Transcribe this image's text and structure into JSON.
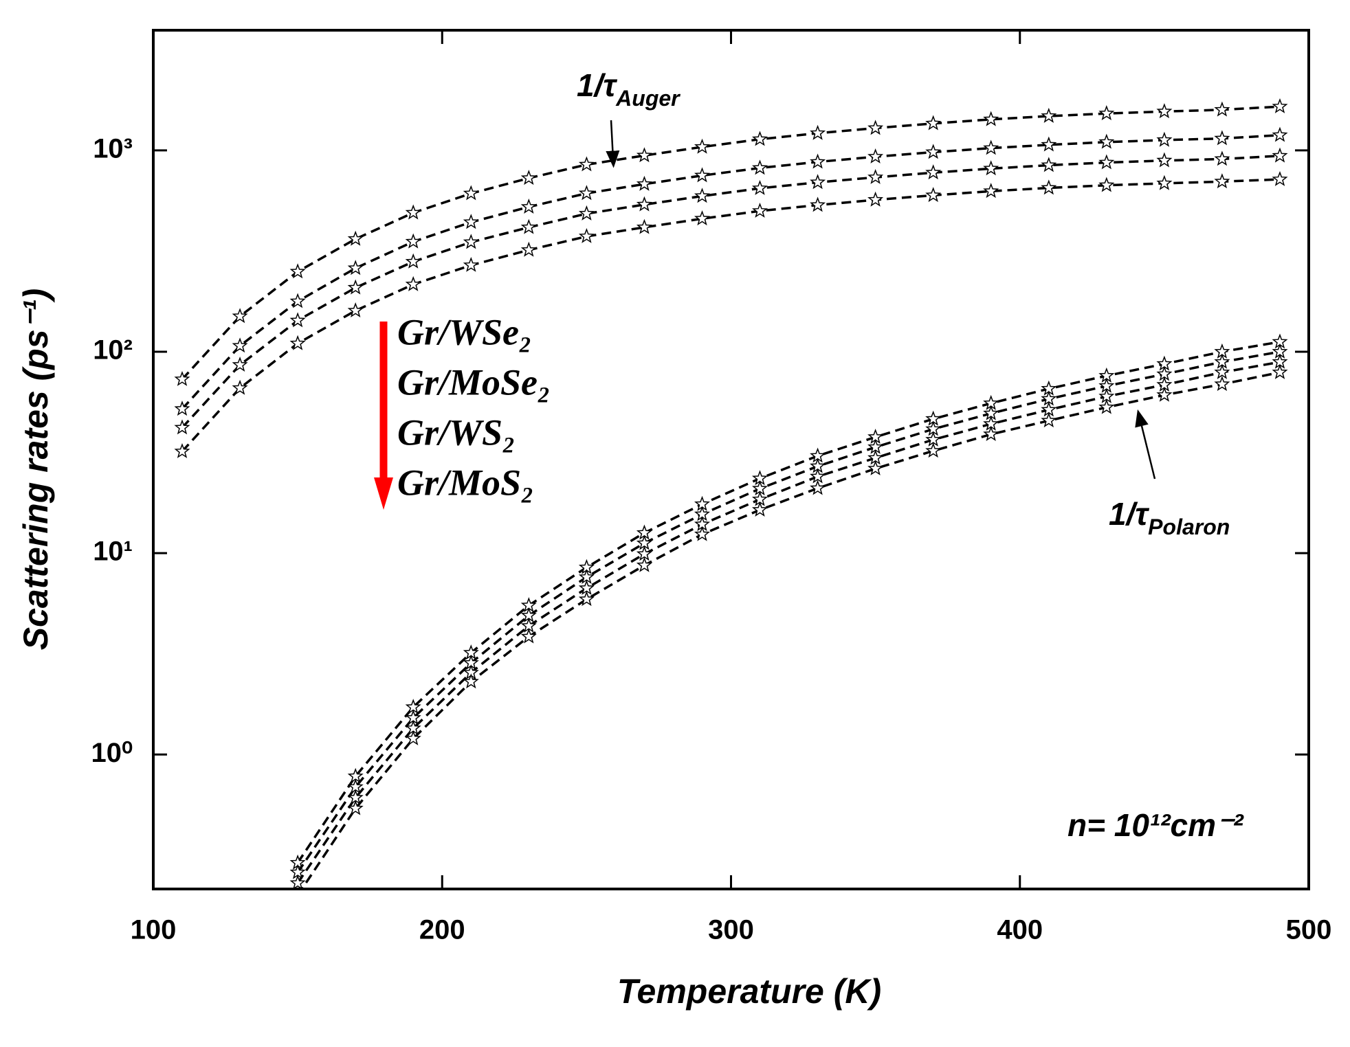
{
  "chart_data": {
    "type": "line",
    "xlabel": "Temperature (K)",
    "ylabel": "Scattering rates (ps⁻¹)",
    "xlim": [
      100,
      500
    ],
    "xticks": [
      100,
      200,
      300,
      400,
      500
    ],
    "ylim": [
      0.215,
      3950
    ],
    "yscale": "log",
    "yticks": [
      {
        "value": 1,
        "label": "10⁰"
      },
      {
        "value": 10,
        "label": "10¹"
      },
      {
        "value": 100,
        "label": "10²"
      },
      {
        "value": 1000,
        "label": "10³"
      }
    ],
    "series": [
      {
        "name": "Gr/WSe₂",
        "color": "#000000",
        "auger": {
          "x": [
            110,
            130,
            150,
            170,
            190,
            210,
            230,
            250,
            270,
            290,
            310,
            330,
            350,
            370,
            390,
            410,
            430,
            450,
            470,
            490
          ],
          "values": [
            73,
            150,
            250,
            363,
            490,
            611,
            728,
            850,
            943,
            1040,
            1136,
            1217,
            1290,
            1360,
            1425,
            1480,
            1525,
            1560,
            1590,
            1650
          ]
        },
        "polaron": {
          "x": [
            150,
            170,
            190,
            210,
            230,
            250,
            270,
            290,
            310,
            330,
            350,
            370,
            390,
            410,
            430,
            450,
            470,
            490
          ],
          "values": [
            0.29,
            0.78,
            1.72,
            3.2,
            5.5,
            8.5,
            12.6,
            17.5,
            23.5,
            30.4,
            37.7,
            46.4,
            55.5,
            65.5,
            76,
            87,
            100,
            112
          ]
        }
      },
      {
        "name": "Gr/MoSe₂",
        "color": "#000000",
        "auger": {
          "x": [
            110,
            130,
            150,
            170,
            190,
            210,
            230,
            250,
            270,
            290,
            310,
            330,
            350,
            370,
            390,
            410,
            430,
            450,
            470,
            490
          ],
          "values": [
            52,
            107,
            178,
            260,
            352,
            440,
            524,
            612,
            680,
            750,
            818,
            876,
            930,
            980,
            1026,
            1066,
            1100,
            1125,
            1145,
            1190
          ]
        },
        "polaron": {
          "x": [
            150,
            170,
            190,
            210,
            230,
            250,
            270,
            290,
            310,
            330,
            350,
            370,
            390,
            410,
            430,
            450,
            470,
            490
          ],
          "values": [
            0.26,
            0.69,
            1.52,
            2.85,
            4.9,
            7.6,
            11.2,
            15.6,
            20.9,
            27,
            33.6,
            41.3,
            49.4,
            58.3,
            67.6,
            77.4,
            89,
            100
          ]
        }
      },
      {
        "name": "Gr/WS₂",
        "color": "#000000",
        "auger": {
          "x": [
            110,
            130,
            150,
            170,
            190,
            210,
            230,
            250,
            270,
            290,
            310,
            330,
            350,
            370,
            390,
            410,
            430,
            450,
            470,
            490
          ],
          "values": [
            42,
            86,
            143,
            208,
            280,
            350,
            415,
            485,
            538,
            593,
            648,
            694,
            735,
            775,
            812,
            844,
            870,
            890,
            906,
            940
          ]
        },
        "polaron": {
          "x": [
            150,
            170,
            190,
            210,
            230,
            250,
            270,
            290,
            310,
            330,
            350,
            370,
            390,
            410,
            430,
            450,
            470,
            490
          ],
          "values": [
            0.23,
            0.61,
            1.35,
            2.55,
            4.35,
            6.7,
            9.9,
            13.9,
            18.5,
            24,
            29.7,
            36.6,
            43.8,
            51.5,
            60,
            68.5,
            79,
            89
          ]
        }
      },
      {
        "name": "Gr/MoS₂",
        "color": "#000000",
        "auger": {
          "x": [
            110,
            130,
            150,
            170,
            190,
            210,
            230,
            250,
            270,
            290,
            310,
            330,
            350,
            370,
            390,
            410,
            430,
            450,
            470,
            490
          ],
          "values": [
            32,
            66,
            110,
            160,
            216,
            269,
            320,
            374,
            415,
            458,
            500,
            535,
            568,
            598,
            627,
            651,
            671,
            686,
            700,
            718
          ]
        },
        "polaron": {
          "x": [
            150,
            170,
            190,
            210,
            230,
            250,
            270,
            290,
            310,
            330,
            350,
            370,
            390,
            410,
            430,
            450,
            470,
            490
          ],
          "values": [
            0.2,
            0.54,
            1.2,
            2.3,
            3.85,
            5.9,
            8.7,
            12.4,
            16.4,
            21,
            26.3,
            32.2,
            38.9,
            45.5,
            53,
            61,
            69,
            79
          ]
        }
      }
    ],
    "annotations": [
      {
        "text": "1/τ",
        "sub": "Auger"
      },
      {
        "text": "1/τ",
        "sub": "Polaron"
      },
      {
        "text": "n= 10¹²cm⁻²"
      }
    ],
    "legend_arrow_color": "#ff0000"
  }
}
